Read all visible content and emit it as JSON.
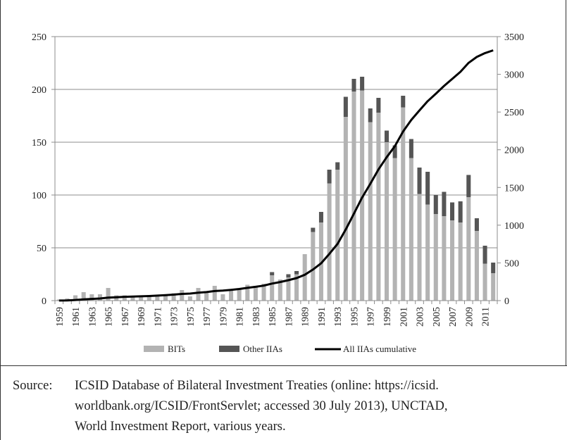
{
  "chart_data": {
    "type": "bar",
    "stacked": true,
    "categories": [
      "1959",
      "1960",
      "1961",
      "1962",
      "1963",
      "1964",
      "1965",
      "1966",
      "1967",
      "1968",
      "1969",
      "1970",
      "1971",
      "1972",
      "1973",
      "1974",
      "1975",
      "1976",
      "1977",
      "1978",
      "1979",
      "1980",
      "1981",
      "1982",
      "1983",
      "1984",
      "1985",
      "1986",
      "1987",
      "1988",
      "1989",
      "1990",
      "1991",
      "1992",
      "1993",
      "1994",
      "1995",
      "1996",
      "1997",
      "1998",
      "1999",
      "2000",
      "2001",
      "2002",
      "2003",
      "2004",
      "2005",
      "2006",
      "2007",
      "2008",
      "2009",
      "2010",
      "2011",
      "2012"
    ],
    "x_tick_labels": [
      "1959",
      "1961",
      "1963",
      "1965",
      "1967",
      "1969",
      "1971",
      "1973",
      "1975",
      "1977",
      "1979",
      "1981",
      "1983",
      "1985",
      "1987",
      "1989",
      "1991",
      "1993",
      "1995",
      "1997",
      "1999",
      "2001",
      "2003",
      "2005",
      "2007",
      "2009",
      "2011"
    ],
    "series": [
      {
        "name": "BITs",
        "color": "#b3b3b3",
        "axis": "left",
        "values": [
          1,
          2,
          5,
          8,
          6,
          6,
          12,
          5,
          5,
          3,
          4,
          4,
          5,
          6,
          7,
          10,
          4,
          12,
          8,
          14,
          6,
          10,
          11,
          15,
          14,
          16,
          24,
          20,
          22,
          25,
          44,
          65,
          74,
          111,
          124,
          174,
          198,
          199,
          169,
          178,
          150,
          135,
          183,
          135,
          101,
          91,
          82,
          80,
          76,
          74,
          98,
          66,
          35,
          26
        ]
      },
      {
        "name": "Other IIAs",
        "color": "#555555",
        "axis": "left",
        "values": [
          0,
          0,
          0,
          0,
          0,
          0,
          0,
          0,
          0,
          0,
          0,
          0,
          0,
          0,
          0,
          0,
          0,
          0,
          0,
          0,
          0,
          0,
          0,
          0,
          0,
          0,
          3,
          0,
          3,
          3,
          0,
          4,
          10,
          13,
          7,
          19,
          12,
          13,
          13,
          14,
          11,
          12,
          11,
          18,
          25,
          31,
          18,
          23,
          17,
          20,
          21,
          12,
          17,
          10
        ]
      },
      {
        "name": "All IIAs cumulative",
        "color": "#000000",
        "axis": "right",
        "type": "line",
        "values": [
          1,
          3,
          8,
          16,
          22,
          28,
          40,
          45,
          50,
          53,
          57,
          61,
          66,
          72,
          79,
          89,
          93,
          105,
          113,
          127,
          133,
          143,
          154,
          169,
          183,
          199,
          226,
          246,
          271,
          299,
          343,
          412,
          496,
          620,
          751,
          944,
          1154,
          1366,
          1548,
          1740,
          1901,
          2048,
          2242,
          2395,
          2521,
          2643,
          2743,
          2846,
          2939,
          3033,
          3152,
          3230,
          3282,
          3318
        ]
      }
    ],
    "yleft": {
      "ylim": [
        0,
        250
      ],
      "ticks": [
        0,
        50,
        100,
        150,
        200,
        250
      ]
    },
    "yright": {
      "ylim": [
        0,
        3500
      ],
      "ticks": [
        0,
        500,
        1000,
        1500,
        2000,
        2500,
        3000,
        3500
      ]
    },
    "grid": true,
    "legend_position": "bottom",
    "title": "",
    "xlabel": "",
    "ylabel": ""
  },
  "source": {
    "label": "Source:",
    "lines": [
      "ICSID Database of Bilateral Investment Treaties (online: https://icsid.",
      "worldbank.org/ICSID/FrontServlet; accessed 30 July 2013), UNCTAD,",
      "World Investment Report, various years."
    ]
  }
}
